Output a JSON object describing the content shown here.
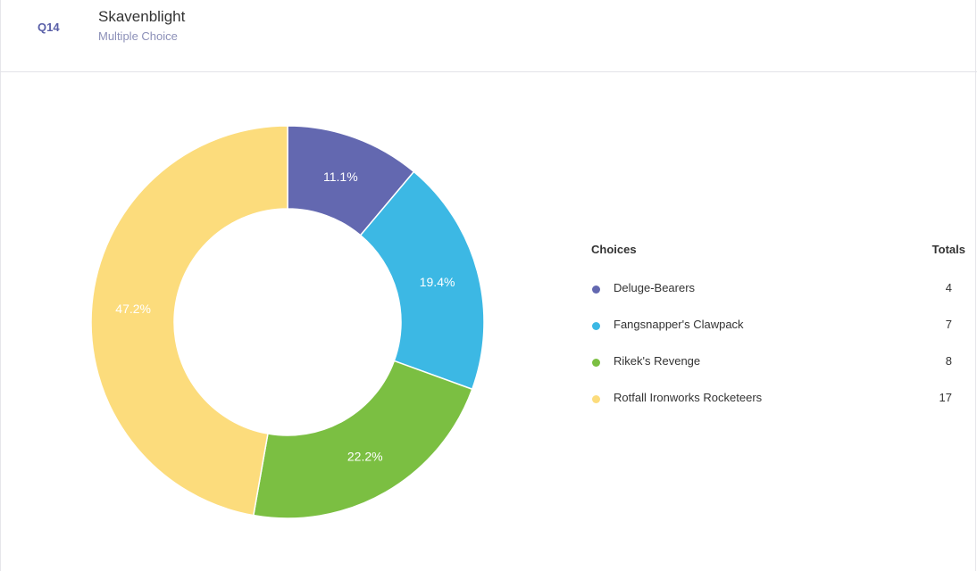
{
  "header": {
    "question_number": "Q14",
    "title": "Skavenblight",
    "type": "Multiple Choice"
  },
  "legend": {
    "choices_header": "Choices",
    "totals_header": "Totals"
  },
  "colors": {
    "accent": "#5a60a8",
    "subtitle": "#8c90b8"
  },
  "chart_data": {
    "type": "pie",
    "categories": [
      "Deluge-Bearers",
      "Fangsnapper's Clawpack",
      "Rikek's Revenge",
      "Rotfall Ironworks Rocketeers"
    ],
    "values": [
      4,
      7,
      8,
      17
    ],
    "percent_labels": [
      "11.1%",
      "19.4%",
      "22.2%",
      "47.2%"
    ],
    "colors": [
      "#6368b0",
      "#3cb8e4",
      "#7bbf42",
      "#fcdc7c"
    ],
    "donut": true
  }
}
